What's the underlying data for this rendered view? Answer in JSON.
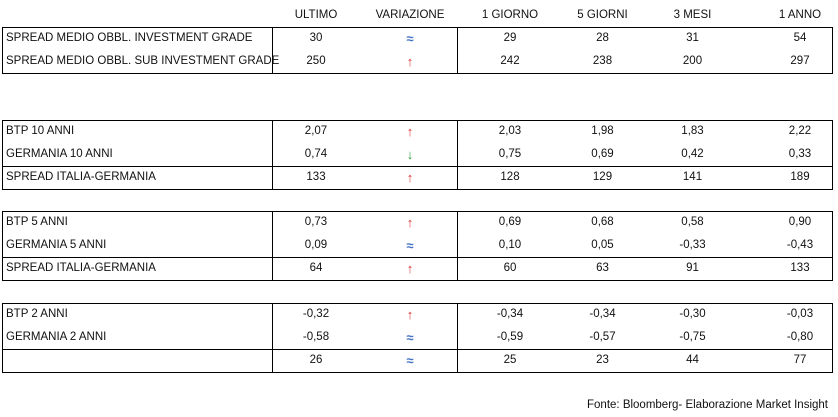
{
  "header": {
    "columns": [
      "ULTIMO",
      "VARIAZIONE",
      "1 GIORNO",
      "5 GIORNI",
      "3 MESI",
      "1 ANNO"
    ]
  },
  "blocks": [
    {
      "rows": [
        {
          "label": "SPREAD MEDIO OBBL. INVESTMENT GRADE",
          "values": [
            "30",
            "≈",
            "29",
            "28",
            "31",
            "54"
          ],
          "change_color": "#4472c4"
        },
        {
          "label": "SPREAD MEDIO OBBL. SUB INVESTMENT GRADE",
          "values": [
            "250",
            "↑",
            "242",
            "238",
            "200",
            "297"
          ],
          "change_color": "#e03030"
        }
      ]
    },
    {
      "rows": [
        {
          "label": "BTP 10 ANNI",
          "values": [
            "2,07",
            "↑",
            "2,03",
            "1,98",
            "1,83",
            "2,22"
          ],
          "change_color": "#e03030"
        },
        {
          "label": "GERMANIA 10 ANNI",
          "values": [
            "0,74",
            "↓",
            "0,75",
            "0,69",
            "0,42",
            "0,33"
          ],
          "change_color": "#2e9e3e"
        },
        {
          "label": "SPREAD ITALIA-GERMANIA",
          "values": [
            "133",
            "↑",
            "128",
            "129",
            "141",
            "189"
          ],
          "change_color": "#e03030"
        }
      ]
    },
    {
      "rows": [
        {
          "label": "BTP 5 ANNI",
          "values": [
            "0,73",
            "↑",
            "0,69",
            "0,68",
            "0,58",
            "0,90"
          ],
          "change_color": "#e03030"
        },
        {
          "label": "GERMANIA 5 ANNI",
          "values": [
            "0,09",
            "≈",
            "0,10",
            "0,05",
            "-0,33",
            "-0,43"
          ],
          "change_color": "#4472c4"
        },
        {
          "label": "SPREAD ITALIA-GERMANIA",
          "values": [
            "64",
            "↑",
            "60",
            "63",
            "91",
            "133"
          ],
          "change_color": "#e03030"
        }
      ]
    },
    {
      "rows": [
        {
          "label": "BTP 2 ANNI",
          "values": [
            "-0,32",
            "↑",
            "-0,34",
            "-0,34",
            "-0,30",
            "-0,03"
          ],
          "change_color": "#e03030"
        },
        {
          "label": "GERMANIA 2 ANNI",
          "values": [
            "-0,58",
            "≈",
            "-0,59",
            "-0,57",
            "-0,75",
            "-0,80"
          ],
          "change_color": "#4472c4"
        },
        {
          "label": null,
          "values": [
            "26",
            "≈",
            "25",
            "23",
            "44",
            "77"
          ],
          "change_color": "#4472c4"
        }
      ]
    }
  ],
  "source": "Fonte: Bloomberg- Elaborazione Market Insight"
}
